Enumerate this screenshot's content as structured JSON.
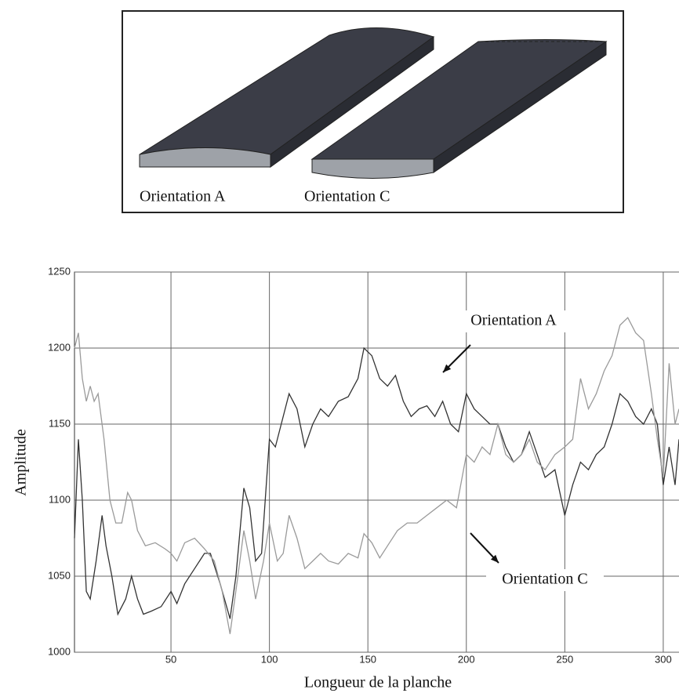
{
  "diagram": {
    "labels": [
      "Orientation A",
      "Orientation C"
    ]
  },
  "chart_data": {
    "type": "line",
    "xlabel": "Longueur de la planche",
    "ylabel": "Amplitude",
    "annotations": [
      "Orientation A",
      "Orientation C"
    ],
    "xlim": [
      1,
      308
    ],
    "ylim": [
      1000,
      1250
    ],
    "xticks": [
      50,
      100,
      150,
      200,
      250,
      300
    ],
    "yticks": [
      1000,
      1050,
      1100,
      1150,
      1200,
      1250
    ],
    "grid": true,
    "series": [
      {
        "name": "Orientation A",
        "color": "#333333",
        "x": [
          1,
          3,
          5,
          7,
          9,
          12,
          15,
          17,
          20,
          23,
          27,
          30,
          33,
          36,
          40,
          45,
          50,
          53,
          57,
          62,
          67,
          70,
          75,
          80,
          83,
          87,
          90,
          93,
          96,
          100,
          103,
          106,
          110,
          114,
          118,
          122,
          126,
          130,
          135,
          140,
          145,
          148,
          152,
          156,
          160,
          164,
          168,
          172,
          176,
          180,
          184,
          188,
          192,
          196,
          200,
          204,
          208,
          212,
          216,
          220,
          224,
          228,
          232,
          236,
          240,
          245,
          250,
          254,
          258,
          262,
          266,
          270,
          274,
          278,
          282,
          286,
          290,
          294,
          297,
          300,
          303,
          306,
          308
        ],
        "values": [
          1075,
          1140,
          1100,
          1040,
          1035,
          1060,
          1090,
          1070,
          1050,
          1025,
          1035,
          1050,
          1035,
          1025,
          1027,
          1030,
          1040,
          1032,
          1045,
          1055,
          1065,
          1065,
          1045,
          1022,
          1050,
          1108,
          1095,
          1060,
          1065,
          1140,
          1135,
          1150,
          1170,
          1160,
          1135,
          1150,
          1160,
          1155,
          1165,
          1168,
          1180,
          1200,
          1195,
          1180,
          1175,
          1182,
          1165,
          1155,
          1160,
          1162,
          1155,
          1165,
          1150,
          1145,
          1170,
          1160,
          1155,
          1150,
          1150,
          1135,
          1125,
          1130,
          1145,
          1130,
          1115,
          1120,
          1090,
          1110,
          1125,
          1120,
          1130,
          1135,
          1150,
          1170,
          1165,
          1155,
          1150,
          1160,
          1150,
          1110,
          1135,
          1110,
          1140
        ]
      },
      {
        "name": "Orientation C",
        "color": "#9a9a9a",
        "x": [
          1,
          3,
          5,
          7,
          9,
          11,
          13,
          16,
          19,
          22,
          25,
          28,
          30,
          33,
          37,
          42,
          47,
          50,
          53,
          57,
          62,
          67,
          72,
          76,
          80,
          84,
          87,
          90,
          93,
          97,
          100,
          104,
          107,
          110,
          114,
          118,
          122,
          126,
          130,
          135,
          140,
          145,
          148,
          152,
          156,
          160,
          165,
          170,
          175,
          180,
          185,
          190,
          195,
          200,
          204,
          208,
          212,
          216,
          220,
          224,
          228,
          232,
          236,
          240,
          245,
          250,
          254,
          258,
          262,
          266,
          270,
          274,
          278,
          282,
          286,
          290,
          294,
          297,
          300,
          303,
          306,
          308
        ],
        "values": [
          1200,
          1210,
          1180,
          1165,
          1175,
          1165,
          1170,
          1140,
          1100,
          1085,
          1085,
          1105,
          1100,
          1080,
          1070,
          1072,
          1068,
          1065,
          1060,
          1072,
          1075,
          1068,
          1060,
          1040,
          1012,
          1050,
          1080,
          1060,
          1035,
          1060,
          1085,
          1060,
          1065,
          1090,
          1075,
          1055,
          1060,
          1065,
          1060,
          1058,
          1065,
          1062,
          1078,
          1072,
          1062,
          1070,
          1080,
          1085,
          1085,
          1090,
          1095,
          1100,
          1095,
          1130,
          1125,
          1135,
          1130,
          1150,
          1130,
          1125,
          1130,
          1140,
          1125,
          1120,
          1130,
          1135,
          1140,
          1180,
          1160,
          1170,
          1185,
          1195,
          1215,
          1220,
          1210,
          1205,
          1170,
          1140,
          1115,
          1190,
          1150,
          1160
        ]
      }
    ]
  }
}
